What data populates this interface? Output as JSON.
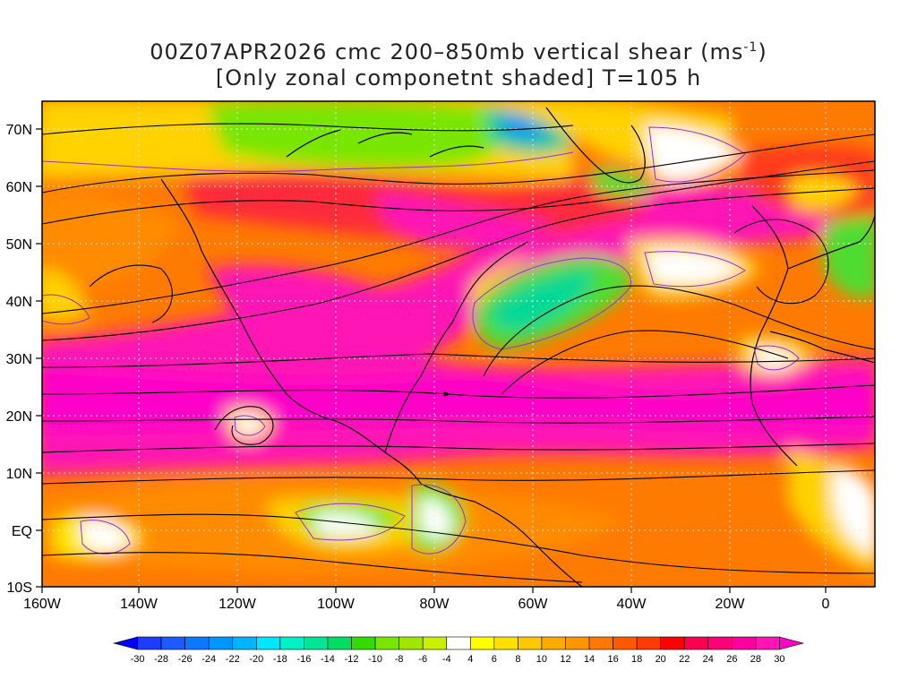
{
  "title": {
    "line1_prefix": "00Z07APR2026 cmc 200–850mb vertical shear (ms",
    "line1_exp": "-1",
    "line1_suffix": ")",
    "line2": "[Only zonal componetnt shaded] T=105 h"
  },
  "map": {
    "projection": "lat-lon",
    "lon_range": [
      -160,
      10
    ],
    "lat_range": [
      -10,
      75
    ],
    "lat_labels": [
      "70N",
      "60N",
      "50N",
      "40N",
      "30N",
      "20N",
      "10N",
      "EQ",
      "10S"
    ],
    "lat_values": [
      70,
      60,
      50,
      40,
      30,
      20,
      10,
      0,
      -10
    ],
    "lon_labels": [
      "160W",
      "140W",
      "120W",
      "100W",
      "80W",
      "60W",
      "40W",
      "20W",
      "0"
    ],
    "lon_values": [
      -160,
      -140,
      -120,
      -100,
      -80,
      -60,
      -40,
      -20,
      0
    ],
    "grid": "dotted"
  },
  "colorbar": {
    "labels": [
      "-30",
      "-28",
      "-26",
      "-24",
      "-22",
      "-20",
      "-18",
      "-16",
      "-14",
      "-12",
      "-10",
      "-8",
      "-6",
      "-4",
      "4",
      "6",
      "8",
      "10",
      "12",
      "14",
      "16",
      "18",
      "20",
      "22",
      "24",
      "26",
      "28",
      "30"
    ],
    "colors": [
      "#0000ff",
      "#1e3cff",
      "#1a5aff",
      "#0a78ff",
      "#0096ff",
      "#00b4ff",
      "#00e6ff",
      "#00f0c8",
      "#00e696",
      "#00dc64",
      "#32dc00",
      "#78e600",
      "#a0e600",
      "#c8f000",
      "#ffffff",
      "#ffff00",
      "#ffe000",
      "#ffc800",
      "#ffaa00",
      "#ff9600",
      "#ff7800",
      "#ff5a00",
      "#ff3c00",
      "#ff0000",
      "#ff0050",
      "#ff0078",
      "#ff00a0",
      "#ff14b4",
      "#ff00c8"
    ]
  },
  "colors": {
    "strong_positive": "#ff14b4",
    "moderate_positive": "#ff6a00",
    "weak_positive": "#ffd200",
    "negative": "#50dc32",
    "strong_negative": "#1e8cff"
  }
}
